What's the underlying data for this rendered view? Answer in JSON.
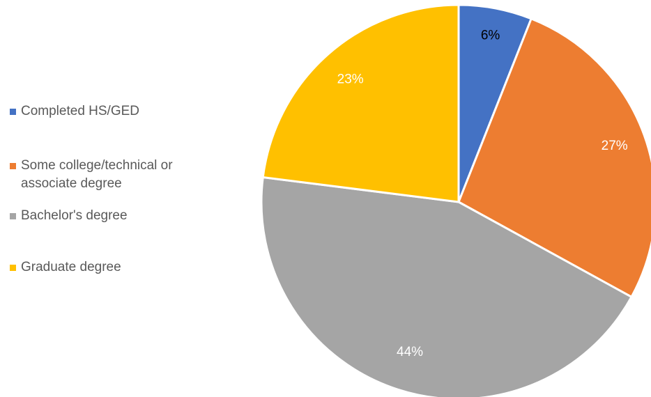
{
  "chart_data": {
    "type": "pie",
    "title": "",
    "legend_position": "left",
    "slices": [
      {
        "name": "Completed HS/GED",
        "value": 6,
        "label": "6%",
        "color": "#4472C4",
        "label_color": "#000000"
      },
      {
        "name": "Some college/technical or associate degree",
        "value": 27,
        "label": "27%",
        "color": "#ED7D31",
        "label_color": "#FFFFFF"
      },
      {
        "name": "Bachelor's degree",
        "value": 44,
        "label": "44%",
        "color": "#A5A5A5",
        "label_color": "#FFFFFF"
      },
      {
        "name": "Graduate degree",
        "value": 23,
        "label": "23%",
        "color": "#FFC000",
        "label_color": "#FFFFFF"
      }
    ]
  }
}
